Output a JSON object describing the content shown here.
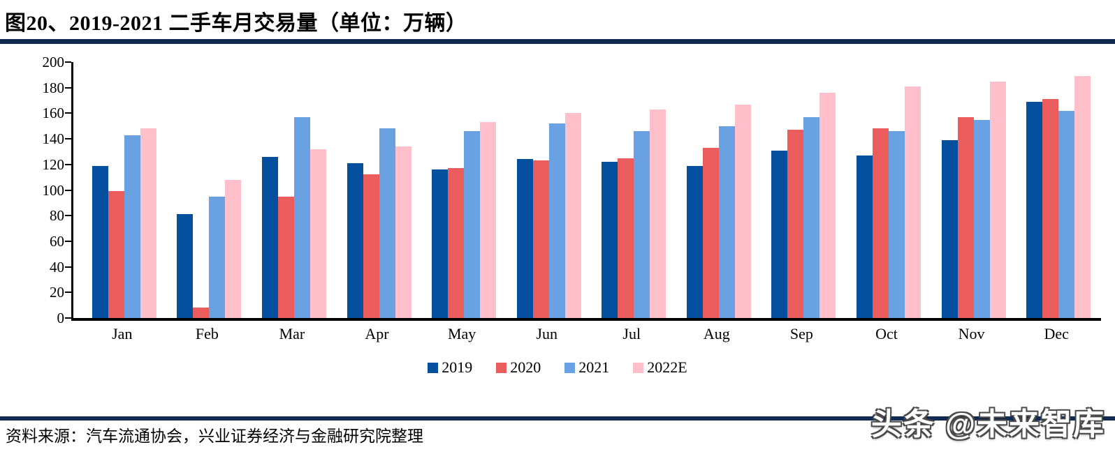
{
  "page": {
    "title": "图20、2019-2021 二手车月交易量（单位：万辆）",
    "source": "资料来源：汽车流通协会，兴业证券经济与金融研究院整理",
    "watermark": "头条 @未来智库"
  },
  "colors": {
    "divider": "#132A52",
    "axis": "#000000",
    "s2019": "#05509E",
    "s2020": "#EB5C5C",
    "s2021": "#6AA1E3",
    "s2022E": "#FFC0CC"
  },
  "chart_data": {
    "type": "bar",
    "title": "2019-2021 二手车月交易量",
    "unit": "万辆",
    "categories": [
      "Jan",
      "Feb",
      "Mar",
      "Apr",
      "May",
      "Jun",
      "Jul",
      "Aug",
      "Sep",
      "Oct",
      "Nov",
      "Dec"
    ],
    "series": [
      {
        "name": "2019",
        "color": "#05509E",
        "values": [
          119,
          81,
          126,
          121,
          116,
          124,
          122,
          119,
          131,
          127,
          139,
          169
        ]
      },
      {
        "name": "2020",
        "color": "#EB5C5C",
        "values": [
          99,
          8,
          95,
          112,
          117,
          123,
          125,
          133,
          147,
          148,
          157,
          171
        ]
      },
      {
        "name": "2021",
        "color": "#6AA1E3",
        "values": [
          143,
          95,
          157,
          148,
          146,
          152,
          146,
          150,
          157,
          146,
          155,
          162
        ]
      },
      {
        "name": "2022E",
        "color": "#FFC0CC",
        "values": [
          148,
          108,
          132,
          134,
          153,
          160,
          163,
          167,
          176,
          181,
          185,
          189
        ]
      }
    ],
    "ylim": [
      0,
      200
    ],
    "y_ticks": [
      0,
      20,
      40,
      60,
      80,
      100,
      120,
      140,
      160,
      180,
      200
    ],
    "grid": false,
    "legend_position": "bottom"
  }
}
